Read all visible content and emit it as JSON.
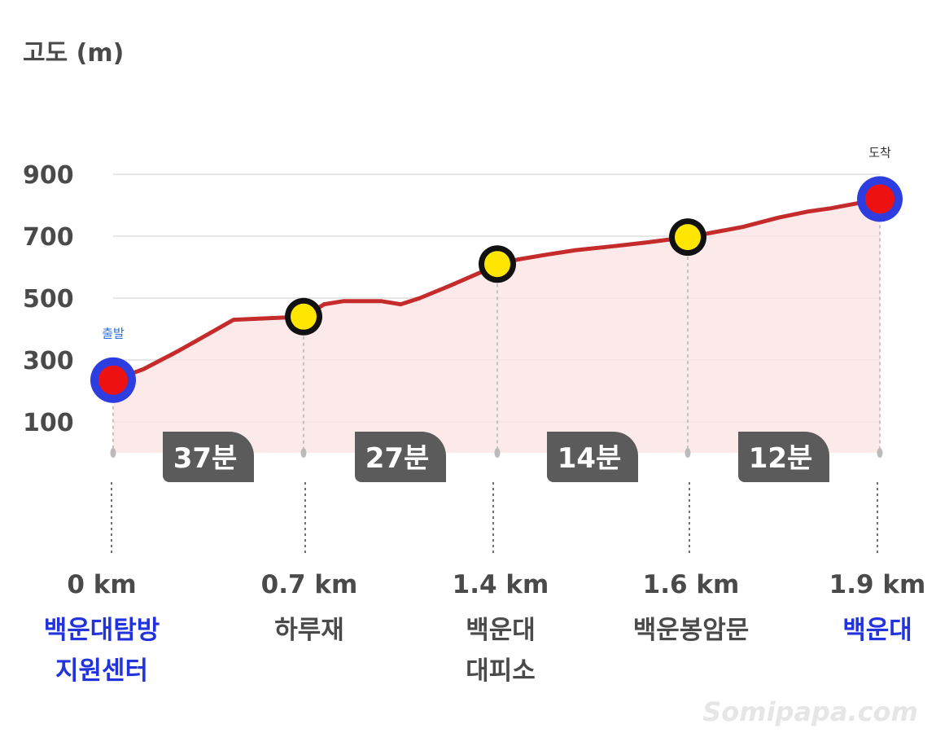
{
  "chart_data": {
    "type": "area",
    "ylabel": "고도 (m)",
    "yticks": [
      100,
      300,
      500,
      700,
      900
    ],
    "ylim": [
      0,
      950
    ],
    "profile": [
      [
        0,
        235
      ],
      [
        0.11,
        270
      ],
      [
        0.24,
        330
      ],
      [
        0.31,
        365
      ],
      [
        0.44,
        430
      ],
      [
        0.7,
        440
      ],
      [
        0.77,
        480
      ],
      [
        0.84,
        490
      ],
      [
        0.98,
        490
      ],
      [
        1.05,
        480
      ],
      [
        1.12,
        500
      ],
      [
        1.23,
        540
      ],
      [
        1.36,
        590
      ],
      [
        1.4,
        610
      ],
      [
        1.48,
        625
      ],
      [
        1.58,
        640
      ],
      [
        1.69,
        655
      ],
      [
        1.83,
        668
      ],
      [
        1.95,
        680
      ],
      [
        2.1,
        697
      ],
      [
        2.3,
        730
      ],
      [
        2.43,
        760
      ],
      [
        2.54,
        780
      ],
      [
        2.62,
        790
      ],
      [
        2.8,
        820
      ]
    ],
    "waypoints": [
      {
        "km": "0 km",
        "name": [
          "백운대탐방",
          "지원센터"
        ],
        "elev": 235,
        "type": "start",
        "marker": "출발",
        "highlight": true
      },
      {
        "km": "0.7 km",
        "name": [
          "하루재"
        ],
        "elev": 440,
        "type": "mid"
      },
      {
        "km": "1.4 km",
        "name": [
          "백운대",
          "대피소"
        ],
        "elev": 610,
        "type": "mid"
      },
      {
        "km": "1.6 km",
        "name": [
          "백운봉암문"
        ],
        "elev": 697,
        "type": "mid"
      },
      {
        "km": "1.9 km",
        "name": [
          "백운대"
        ],
        "elev": 820,
        "type": "end",
        "marker": "도착",
        "highlight": true
      }
    ],
    "segments": [
      "37분",
      "27분",
      "14분",
      "12분"
    ],
    "grid": true
  },
  "watermark": "Somipapa.com",
  "colors": {
    "line": "#c62b2b",
    "fill": "#fbe5e5",
    "start_end_ring": "#2d3de0",
    "start_end_dot": "#ee1111",
    "mid_dot": "#ffe600",
    "mid_ring": "#111111",
    "duration_bg": "#5b5b5b",
    "highlight_text": "#2233dd"
  }
}
